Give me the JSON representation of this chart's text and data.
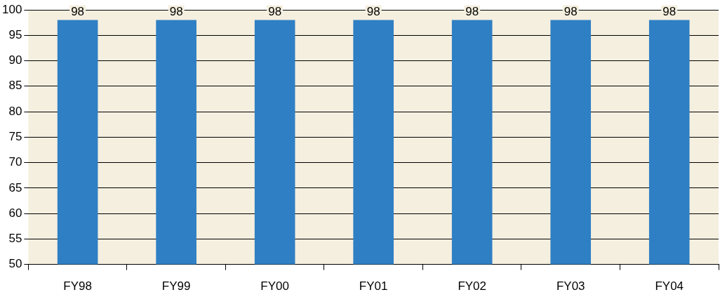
{
  "chart_data": {
    "type": "bar",
    "categories": [
      "FY98",
      "FY99",
      "FY00",
      "FY01",
      "FY02",
      "FY03",
      "FY04"
    ],
    "values": [
      98,
      98,
      98,
      98,
      98,
      98,
      98
    ],
    "color": "#2f7fc4",
    "ylim": [
      50,
      100
    ],
    "yticks": [
      50,
      55,
      60,
      65,
      70,
      75,
      80,
      85,
      90,
      95,
      100
    ],
    "grid": "y",
    "legend": false,
    "data_labels": true
  }
}
